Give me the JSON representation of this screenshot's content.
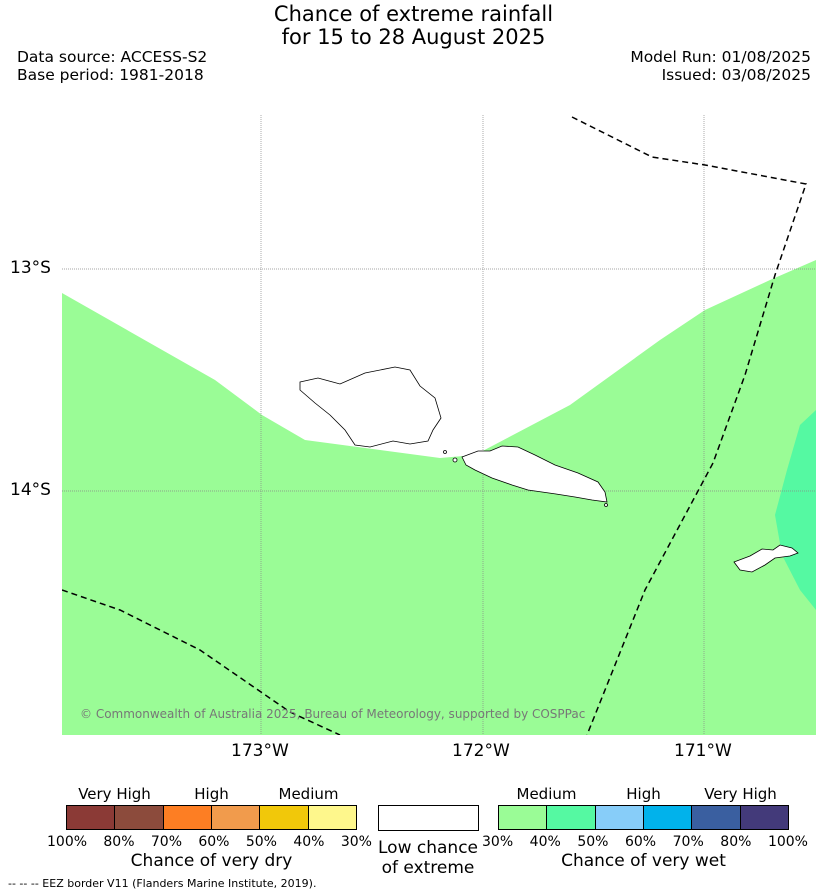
{
  "header": {
    "title_line1": "Chance of extreme rainfall",
    "title_line2": "for 15 to 28 August 2025",
    "data_source": "Data source: ACCESS-S2",
    "base_period": "Base period: 1981-2018",
    "model_run": "Model Run: 01/08/2025",
    "issued": "Issued: 03/08/2025"
  },
  "map": {
    "lat_labels": [
      "13°S",
      "14°S"
    ],
    "lon_labels": [
      "173°W",
      "172°W",
      "171°W"
    ],
    "copyright": "© Commonwealth of Australia 2025, Bureau of Meteorology, supported by COSPPac",
    "fill_colors": {
      "medium_wet": "#9afc96",
      "medium_high_wet": "#55f9a2"
    }
  },
  "legend": {
    "dry": {
      "categories": [
        "Very High",
        "High",
        "Medium"
      ],
      "colors": [
        "#8b3a36",
        "#8c4b3c",
        "#fd7e23",
        "#f19b4c",
        "#f1c80a",
        "#fef78c"
      ],
      "ticks": [
        "100%",
        "80%",
        "70%",
        "60%",
        "50%",
        "40%",
        "30%"
      ],
      "title": "Chance of very dry"
    },
    "low": {
      "title_line1": "Low chance",
      "title_line2": "of extreme",
      "color": "#ffffff"
    },
    "wet": {
      "categories": [
        "Medium",
        "High",
        "Very High"
      ],
      "colors": [
        "#9afc96",
        "#55f9a2",
        "#87cdf9",
        "#01b2eb",
        "#3a5fa0",
        "#433a7a"
      ],
      "ticks": [
        "30%",
        "40%",
        "50%",
        "60%",
        "70%",
        "80%",
        "100%"
      ],
      "title": "Chance of very wet"
    }
  },
  "footnote": "-- -- -- EEZ border V11 (Flanders Marine Institute, 2019)."
}
